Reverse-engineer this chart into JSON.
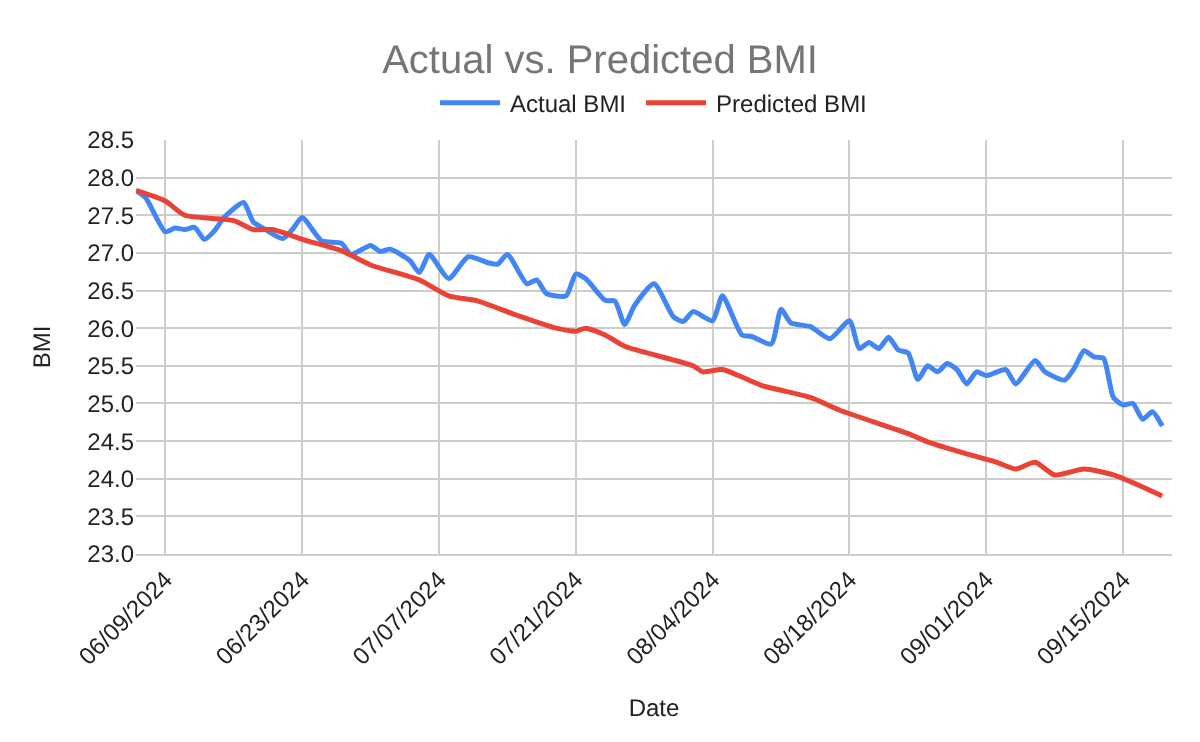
{
  "chart_data": {
    "type": "line",
    "title": "Actual vs. Predicted BMI",
    "xlabel": "Date",
    "ylabel": "BMI",
    "series": [
      {
        "name": "Actual BMI",
        "color": "#4285f4",
        "x": [
          "2024-06-06",
          "2024-06-07",
          "2024-06-09",
          "2024-06-10",
          "2024-06-11",
          "2024-06-12",
          "2024-06-13",
          "2024-06-14",
          "2024-06-15",
          "2024-06-17",
          "2024-06-18",
          "2024-06-19",
          "2024-06-21",
          "2024-06-22",
          "2024-06-23",
          "2024-06-25",
          "2024-06-27",
          "2024-06-28",
          "2024-06-30",
          "2024-07-01",
          "2024-07-02",
          "2024-07-04",
          "2024-07-05",
          "2024-07-06",
          "2024-07-08",
          "2024-07-10",
          "2024-07-12",
          "2024-07-13",
          "2024-07-14",
          "2024-07-16",
          "2024-07-17",
          "2024-07-18",
          "2024-07-20",
          "2024-07-21",
          "2024-07-22",
          "2024-07-24",
          "2024-07-25",
          "2024-07-26",
          "2024-07-27",
          "2024-07-29",
          "2024-07-31",
          "2024-08-01",
          "2024-08-02",
          "2024-08-04",
          "2024-08-05",
          "2024-08-07",
          "2024-08-08",
          "2024-08-10",
          "2024-08-11",
          "2024-08-12",
          "2024-08-14",
          "2024-08-16",
          "2024-08-18",
          "2024-08-19",
          "2024-08-20",
          "2024-08-21",
          "2024-08-22",
          "2024-08-23",
          "2024-08-24",
          "2024-08-25",
          "2024-08-26",
          "2024-08-27",
          "2024-08-28",
          "2024-08-29",
          "2024-08-30",
          "2024-08-31",
          "2024-09-01",
          "2024-09-03",
          "2024-09-04",
          "2024-09-06",
          "2024-09-07",
          "2024-09-09",
          "2024-09-10",
          "2024-09-11",
          "2024-09-12",
          "2024-09-13",
          "2024-09-14",
          "2024-09-15",
          "2024-09-16",
          "2024-09-17",
          "2024-09-18",
          "2024-09-19"
        ],
        "values": [
          27.83,
          27.73,
          27.28,
          27.33,
          27.31,
          27.34,
          27.18,
          27.29,
          27.47,
          27.67,
          27.41,
          27.33,
          27.19,
          27.31,
          27.47,
          27.16,
          27.13,
          26.98,
          27.1,
          27.02,
          27.05,
          26.9,
          26.74,
          26.98,
          26.66,
          26.95,
          26.87,
          26.85,
          26.98,
          26.59,
          26.64,
          26.46,
          26.43,
          26.72,
          26.66,
          26.37,
          26.36,
          26.05,
          26.3,
          26.59,
          26.15,
          26.09,
          26.22,
          26.1,
          26.43,
          25.91,
          25.89,
          25.79,
          26.25,
          26.07,
          26.02,
          25.86,
          26.1,
          25.73,
          25.81,
          25.73,
          25.88,
          25.71,
          25.67,
          25.32,
          25.5,
          25.42,
          25.53,
          25.45,
          25.26,
          25.42,
          25.37,
          25.45,
          25.26,
          25.57,
          25.42,
          25.31,
          25.47,
          25.7,
          25.62,
          25.6,
          25.08,
          24.98,
          25.0,
          24.79,
          24.89,
          24.7
        ]
      },
      {
        "name": "Predicted BMI",
        "color": "#ea4335",
        "x": [
          "2024-06-06",
          "2024-06-09",
          "2024-06-11",
          "2024-06-16",
          "2024-06-18",
          "2024-06-20",
          "2024-06-23",
          "2024-06-27",
          "2024-06-30",
          "2024-07-05",
          "2024-07-08",
          "2024-07-11",
          "2024-07-15",
          "2024-07-19",
          "2024-07-21",
          "2024-07-22",
          "2024-07-24",
          "2024-07-26",
          "2024-08-02",
          "2024-08-03",
          "2024-08-05",
          "2024-08-09",
          "2024-08-14",
          "2024-08-17",
          "2024-08-24",
          "2024-08-26",
          "2024-08-30",
          "2024-09-02",
          "2024-09-04",
          "2024-09-06",
          "2024-09-08",
          "2024-09-11",
          "2024-09-14",
          "2024-09-17",
          "2024-09-19"
        ],
        "values": [
          27.83,
          27.69,
          27.5,
          27.43,
          27.31,
          27.31,
          27.18,
          27.03,
          26.84,
          26.64,
          26.43,
          26.36,
          26.17,
          26.0,
          25.96,
          26.0,
          25.91,
          25.76,
          25.5,
          25.42,
          25.45,
          25.24,
          25.08,
          24.91,
          24.6,
          24.49,
          24.33,
          24.22,
          24.13,
          24.22,
          24.05,
          24.13,
          24.05,
          23.89,
          23.77
        ]
      }
    ],
    "xlim": [
      "2024-06-06",
      "2024-09-20"
    ],
    "xticks": [
      {
        "value": "2024-06-09",
        "label": "06/09/2024"
      },
      {
        "value": "2024-06-23",
        "label": "06/23/2024"
      },
      {
        "value": "2024-07-07",
        "label": "07/07/2024"
      },
      {
        "value": "2024-07-21",
        "label": "07/21/2024"
      },
      {
        "value": "2024-08-04",
        "label": "08/04/2024"
      },
      {
        "value": "2024-08-18",
        "label": "08/18/2024"
      },
      {
        "value": "2024-09-01",
        "label": "09/01/2024"
      },
      {
        "value": "2024-09-15",
        "label": "09/15/2024"
      }
    ],
    "ylim": [
      23.0,
      28.5
    ],
    "yticks": [
      {
        "value": 23.0,
        "label": "23.0"
      },
      {
        "value": 23.5,
        "label": "23.5"
      },
      {
        "value": 24.0,
        "label": "24.0"
      },
      {
        "value": 24.5,
        "label": "24.5"
      },
      {
        "value": 25.0,
        "label": "25.0"
      },
      {
        "value": 25.5,
        "label": "25.5"
      },
      {
        "value": 26.0,
        "label": "26.0"
      },
      {
        "value": 26.5,
        "label": "26.5"
      },
      {
        "value": 27.0,
        "label": "27.0"
      },
      {
        "value": 27.5,
        "label": "27.5"
      },
      {
        "value": 28.0,
        "label": "28.0"
      },
      {
        "value": 28.5,
        "label": "28.5"
      }
    ],
    "grid": true,
    "legend": "top",
    "marker": "none",
    "line_style": "solid"
  }
}
